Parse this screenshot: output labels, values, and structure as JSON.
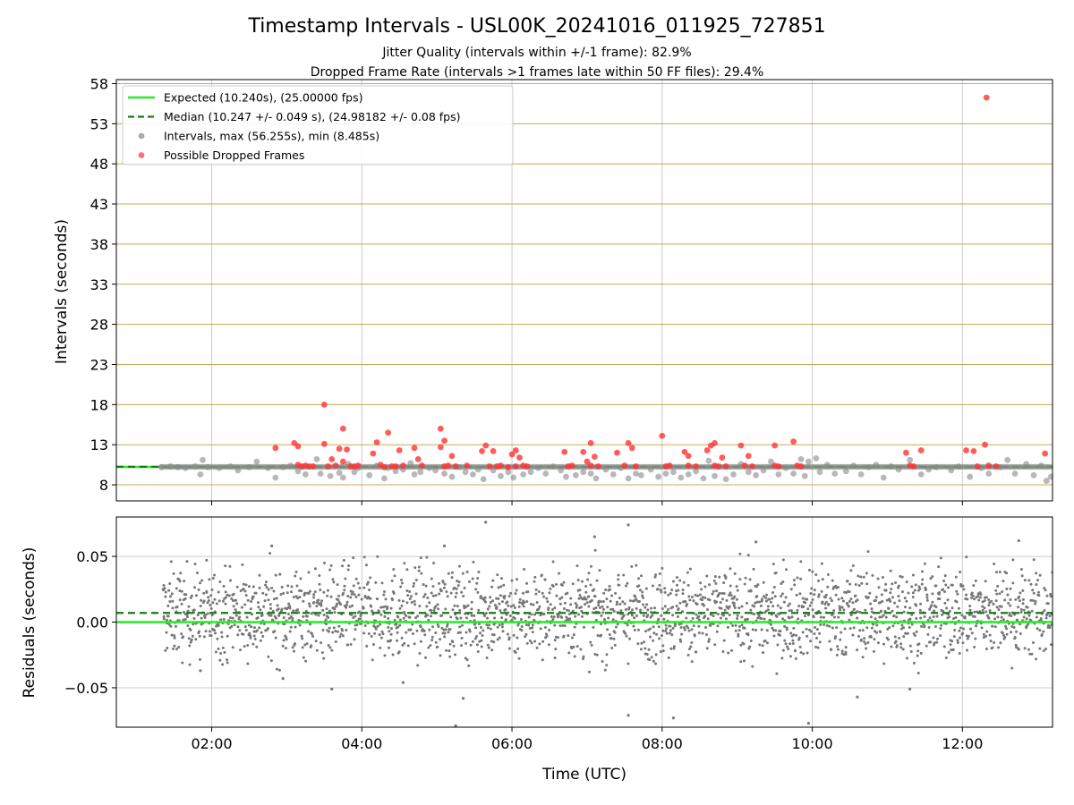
{
  "header": {
    "title": "Timestamp Intervals - USL00K_20241016_011925_727851",
    "subtitle_1": "Jitter Quality (intervals within +/-1 frame): 82.9%",
    "subtitle_2": "Dropped Frame Rate (intervals >1 frames late within 50 FF files): 29.4%"
  },
  "chart_data": [
    {
      "type": "scatter",
      "panel": "top",
      "title": "Timestamp Intervals - USL00K_20241016_011925_727851",
      "ylabel": "Intervals (seconds)",
      "xlabel": "",
      "x_unit": "hours UTC",
      "xlim": [
        0.73,
        13.2
      ],
      "ylim": [
        6.0,
        58.5
      ],
      "yticks": [
        8,
        13,
        18,
        23,
        28,
        33,
        38,
        43,
        48,
        53,
        58
      ],
      "xticks": [
        "02:00",
        "04:00",
        "06:00",
        "08:00",
        "10:00",
        "12:00"
      ],
      "grid": {
        "x": true,
        "y": true,
        "y_color": "#c8a951"
      },
      "legend": {
        "position": "top-left",
        "entries": [
          {
            "label": "Expected (10.240s), (25.00000 fps)",
            "style": "solid-line",
            "color": "#22ee22"
          },
          {
            "label": "Median (10.247 +/- 0.049 s), (24.98182 +/- 0.08 fps)",
            "style": "dashed-line",
            "color": "#1a7a1a"
          },
          {
            "label": "Intervals, max (56.255s), min (8.485s)",
            "style": "marker",
            "color": "#888888"
          },
          {
            "label": "Possible Dropped Frames",
            "style": "marker",
            "color": "#ff3333"
          }
        ]
      },
      "reference_lines": [
        {
          "name": "Expected",
          "y": 10.24,
          "color": "#22ee22",
          "style": "solid"
        },
        {
          "name": "Median",
          "y": 10.247,
          "color": "#1a7a1a",
          "style": "dashed"
        }
      ],
      "series": [
        {
          "name": "Intervals, max (56.255s), min (8.485s)",
          "color": "#888888",
          "points": [
            [
              1.33,
              10.2
            ],
            [
              1.45,
              10.3
            ],
            [
              1.55,
              10.2
            ],
            [
              1.65,
              10.1
            ],
            [
              1.78,
              10.3
            ],
            [
              1.85,
              9.3
            ],
            [
              1.88,
              11.1
            ],
            [
              1.95,
              10.2
            ],
            [
              2.1,
              10.1
            ],
            [
              2.25,
              10.3
            ],
            [
              2.35,
              9.8
            ],
            [
              2.5,
              10.2
            ],
            [
              2.6,
              10.9
            ],
            [
              2.75,
              10.1
            ],
            [
              2.85,
              8.9
            ],
            [
              2.95,
              10.2
            ],
            [
              3.05,
              10.4
            ],
            [
              3.15,
              9.7
            ],
            [
              3.25,
              9.3
            ],
            [
              3.4,
              11.2
            ],
            [
              3.45,
              9.4
            ],
            [
              3.58,
              9.1
            ],
            [
              3.7,
              9.5
            ],
            [
              3.75,
              8.9
            ],
            [
              3.82,
              10.6
            ],
            [
              3.9,
              9.6
            ],
            [
              3.95,
              10.1
            ],
            [
              4.1,
              9.2
            ],
            [
              4.2,
              10.4
            ],
            [
              4.3,
              8.8
            ],
            [
              4.35,
              10.1
            ],
            [
              4.45,
              9.7
            ],
            [
              4.55,
              9.9
            ],
            [
              4.65,
              10.7
            ],
            [
              4.7,
              9.3
            ],
            [
              4.78,
              9.6
            ],
            [
              4.9,
              10.1
            ],
            [
              4.98,
              9.8
            ],
            [
              5.1,
              9.4
            ],
            [
              5.2,
              9.0
            ],
            [
              5.3,
              10.2
            ],
            [
              5.38,
              9.6
            ],
            [
              5.48,
              9.3
            ],
            [
              5.55,
              9.9
            ],
            [
              5.62,
              8.7
            ],
            [
              5.75,
              9.8
            ],
            [
              5.85,
              9.1
            ],
            [
              5.95,
              9.6
            ],
            [
              6.02,
              8.9
            ],
            [
              6.15,
              9.3
            ],
            [
              6.25,
              9.6
            ],
            [
              6.35,
              10.1
            ],
            [
              6.45,
              9.4
            ],
            [
              6.55,
              10.3
            ],
            [
              6.65,
              9.8
            ],
            [
              6.72,
              9.0
            ],
            [
              6.85,
              9.2
            ],
            [
              6.95,
              9.6
            ],
            [
              7.05,
              9.4
            ],
            [
              7.12,
              8.8
            ],
            [
              7.25,
              9.9
            ],
            [
              7.35,
              9.3
            ],
            [
              7.45,
              10.1
            ],
            [
              7.55,
              8.8
            ],
            [
              7.65,
              9.4
            ],
            [
              7.72,
              9.2
            ],
            [
              7.85,
              9.9
            ],
            [
              7.95,
              9.0
            ],
            [
              8.05,
              9.4
            ],
            [
              8.15,
              9.6
            ],
            [
              8.25,
              8.9
            ],
            [
              8.35,
              9.3
            ],
            [
              8.45,
              9.7
            ],
            [
              8.55,
              8.8
            ],
            [
              8.62,
              11.0
            ],
            [
              8.7,
              9.1
            ],
            [
              8.85,
              8.7
            ],
            [
              8.95,
              9.3
            ],
            [
              9.05,
              10.6
            ],
            [
              9.15,
              9.6
            ],
            [
              9.25,
              9.2
            ],
            [
              9.35,
              9.8
            ],
            [
              9.45,
              10.9
            ],
            [
              9.55,
              9.3
            ],
            [
              9.65,
              10.1
            ],
            [
              9.75,
              9.4
            ],
            [
              9.85,
              11.2
            ],
            [
              9.9,
              9.1
            ],
            [
              9.95,
              10.9
            ],
            [
              10.05,
              11.3
            ],
            [
              10.1,
              9.6
            ],
            [
              10.2,
              10.5
            ],
            [
              10.3,
              9.4
            ],
            [
              10.45,
              9.7
            ],
            [
              10.55,
              10.4
            ],
            [
              10.65,
              9.3
            ],
            [
              10.75,
              10.2
            ],
            [
              10.85,
              10.5
            ],
            [
              10.95,
              8.9
            ],
            [
              11.05,
              10.3
            ],
            [
              11.15,
              9.9
            ],
            [
              11.3,
              11.1
            ],
            [
              11.45,
              9.3
            ],
            [
              11.55,
              9.9
            ],
            [
              11.65,
              10.2
            ],
            [
              11.85,
              9.8
            ],
            [
              11.95,
              10.3
            ],
            [
              12.1,
              9.0
            ],
            [
              12.25,
              10.1
            ],
            [
              12.35,
              9.4
            ],
            [
              12.5,
              10.2
            ],
            [
              12.6,
              11.1
            ],
            [
              12.7,
              9.4
            ],
            [
              12.85,
              10.6
            ],
            [
              12.95,
              9.2
            ],
            [
              13.05,
              10.4
            ],
            [
              13.12,
              8.5
            ],
            [
              13.18,
              9.0
            ]
          ]
        },
        {
          "name": "Possible Dropped Frames",
          "color": "#ff3333",
          "points": [
            [
              2.85,
              12.6
            ],
            [
              3.1,
              13.2
            ],
            [
              3.15,
              12.8
            ],
            [
              3.15,
              10.5
            ],
            [
              3.2,
              10.3
            ],
            [
              3.25,
              10.4
            ],
            [
              3.3,
              10.3
            ],
            [
              3.35,
              10.3
            ],
            [
              3.5,
              18.0
            ],
            [
              3.5,
              13.1
            ],
            [
              3.55,
              10.3
            ],
            [
              3.6,
              11.2
            ],
            [
              3.65,
              10.4
            ],
            [
              3.7,
              12.5
            ],
            [
              3.75,
              15.0
            ],
            [
              3.75,
              10.9
            ],
            [
              3.8,
              12.4
            ],
            [
              3.85,
              10.3
            ],
            [
              3.9,
              10.3
            ],
            [
              3.95,
              10.4
            ],
            [
              4.15,
              11.9
            ],
            [
              4.2,
              13.3
            ],
            [
              4.25,
              10.5
            ],
            [
              4.3,
              10.2
            ],
            [
              4.35,
              14.5
            ],
            [
              4.4,
              10.3
            ],
            [
              4.45,
              10.3
            ],
            [
              4.5,
              12.3
            ],
            [
              4.55,
              10.4
            ],
            [
              4.7,
              12.6
            ],
            [
              4.75,
              11.2
            ],
            [
              4.8,
              10.4
            ],
            [
              5.05,
              15.0
            ],
            [
              5.05,
              12.7
            ],
            [
              5.1,
              13.5
            ],
            [
              5.1,
              10.3
            ],
            [
              5.15,
              10.4
            ],
            [
              5.2,
              11.6
            ],
            [
              5.25,
              10.3
            ],
            [
              5.4,
              10.4
            ],
            [
              5.6,
              12.2
            ],
            [
              5.65,
              12.9
            ],
            [
              5.7,
              10.3
            ],
            [
              5.75,
              12.2
            ],
            [
              5.8,
              10.3
            ],
            [
              5.85,
              10.4
            ],
            [
              5.95,
              10.2
            ],
            [
              6.0,
              11.8
            ],
            [
              6.05,
              12.3
            ],
            [
              6.05,
              10.3
            ],
            [
              6.1,
              11.4
            ],
            [
              6.15,
              10.4
            ],
            [
              6.2,
              10.3
            ],
            [
              6.7,
              12.1
            ],
            [
              6.75,
              10.3
            ],
            [
              6.8,
              10.4
            ],
            [
              6.95,
              12.1
            ],
            [
              7.0,
              10.9
            ],
            [
              7.05,
              13.2
            ],
            [
              7.05,
              10.4
            ],
            [
              7.1,
              11.5
            ],
            [
              7.15,
              10.3
            ],
            [
              7.4,
              12.0
            ],
            [
              7.5,
              10.4
            ],
            [
              7.55,
              13.2
            ],
            [
              7.6,
              12.6
            ],
            [
              7.65,
              10.3
            ],
            [
              8.0,
              14.1
            ],
            [
              8.05,
              10.3
            ],
            [
              8.1,
              10.4
            ],
            [
              8.3,
              12.1
            ],
            [
              8.35,
              11.6
            ],
            [
              8.35,
              10.4
            ],
            [
              8.45,
              10.3
            ],
            [
              8.6,
              12.3
            ],
            [
              8.65,
              12.9
            ],
            [
              8.7,
              13.2
            ],
            [
              8.7,
              10.4
            ],
            [
              8.75,
              10.3
            ],
            [
              8.8,
              11.4
            ],
            [
              8.85,
              10.3
            ],
            [
              9.05,
              12.9
            ],
            [
              9.1,
              10.4
            ],
            [
              9.15,
              11.6
            ],
            [
              9.2,
              10.3
            ],
            [
              9.5,
              12.9
            ],
            [
              9.5,
              10.4
            ],
            [
              9.55,
              10.3
            ],
            [
              9.75,
              13.4
            ],
            [
              9.8,
              10.4
            ],
            [
              9.85,
              10.3
            ],
            [
              11.25,
              12.0
            ],
            [
              11.3,
              10.4
            ],
            [
              11.35,
              10.3
            ],
            [
              11.45,
              12.3
            ],
            [
              12.05,
              12.3
            ],
            [
              12.15,
              12.2
            ],
            [
              12.3,
              13.0
            ],
            [
              12.2,
              10.3
            ],
            [
              12.35,
              10.4
            ],
            [
              12.45,
              10.3
            ],
            [
              13.1,
              11.9
            ],
            [
              12.32,
              56.255
            ]
          ]
        }
      ]
    },
    {
      "type": "scatter",
      "panel": "bottom",
      "ylabel": "Residuals (seconds)",
      "xlabel": "Time (UTC)",
      "x_unit": "hours UTC",
      "xlim": [
        0.73,
        13.2
      ],
      "ylim": [
        -0.08,
        0.08
      ],
      "yticks": [
        0.05,
        0.0,
        -0.05
      ],
      "ytick_labels": [
        "0.05",
        "0.00",
        "−0.05"
      ],
      "xticks": [
        "02:00",
        "04:00",
        "06:00",
        "08:00",
        "10:00",
        "12:00"
      ],
      "grid": {
        "x": true,
        "y": true
      },
      "reference_lines": [
        {
          "name": "Expected",
          "y": 0.0,
          "color": "#22ee22",
          "style": "solid"
        },
        {
          "name": "Median",
          "y": 0.007,
          "color": "#1a7a1a",
          "style": "dashed"
        }
      ],
      "series": [
        {
          "name": "Residuals",
          "color": "#777777",
          "x_range": [
            1.35,
            13.2
          ],
          "count": 2400,
          "spread_sd": 0.02,
          "points": [
            [
              5.65,
              0.076
            ],
            [
              7.55,
              0.074
            ],
            [
              5.25,
              -0.079
            ],
            [
              7.55,
              -0.071
            ],
            [
              8.15,
              -0.073
            ],
            [
              9.95,
              -0.077
            ],
            [
              5.35,
              -0.058
            ],
            [
              10.6,
              -0.057
            ],
            [
              11.3,
              -0.051
            ],
            [
              3.6,
              -0.051
            ],
            [
              12.75,
              0.062
            ],
            [
              7.1,
              0.065
            ],
            [
              9.25,
              0.061
            ],
            [
              2.8,
              0.058
            ],
            [
              5.1,
              0.058
            ],
            [
              1.85,
              -0.037
            ],
            [
              2.95,
              -0.043
            ],
            [
              4.55,
              -0.046
            ]
          ]
        }
      ]
    }
  ]
}
